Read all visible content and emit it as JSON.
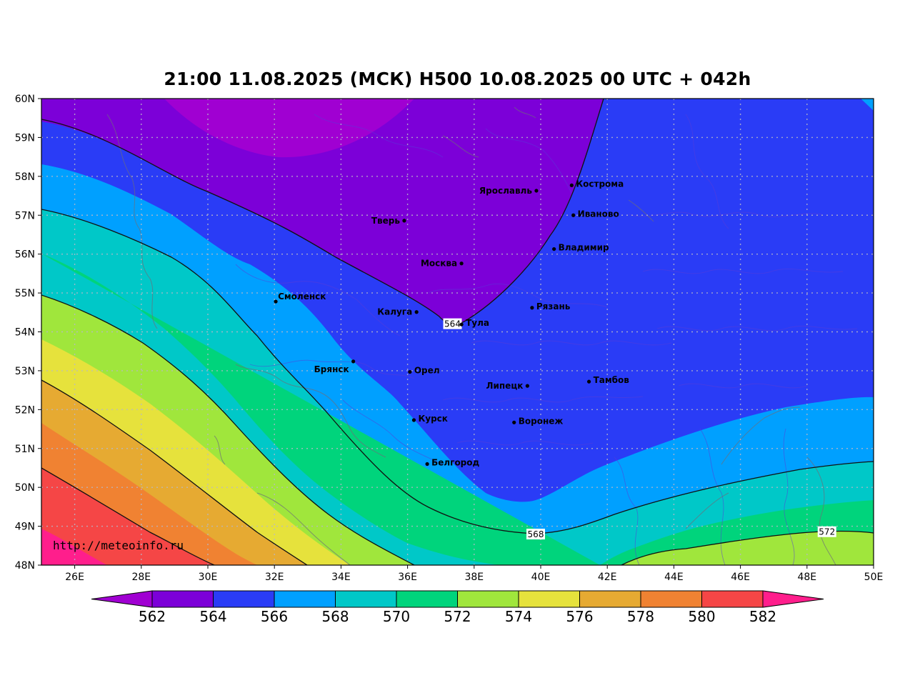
{
  "title": "21:00 11.08.2025 (МСК) H500  10.08.2025 00 UTC + 042h",
  "watermark": "http://meteoinfo.ru",
  "latitudes": [
    {
      "label": "60N",
      "value": 60
    },
    {
      "label": "59N",
      "value": 59
    },
    {
      "label": "58N",
      "value": 58
    },
    {
      "label": "57N",
      "value": 57
    },
    {
      "label": "56N",
      "value": 56
    },
    {
      "label": "55N",
      "value": 55
    },
    {
      "label": "54N",
      "value": 54
    },
    {
      "label": "53N",
      "value": 53
    },
    {
      "label": "52N",
      "value": 52
    },
    {
      "label": "51N",
      "value": 51
    },
    {
      "label": "50N",
      "value": 50
    },
    {
      "label": "49N",
      "value": 49
    },
    {
      "label": "48N",
      "value": 48
    }
  ],
  "longitudes": [
    {
      "label": "26E",
      "value": 26
    },
    {
      "label": "28E",
      "value": 28
    },
    {
      "label": "30E",
      "value": 30
    },
    {
      "label": "32E",
      "value": 32
    },
    {
      "label": "34E",
      "value": 34
    },
    {
      "label": "36E",
      "value": 36
    },
    {
      "label": "38E",
      "value": 38
    },
    {
      "label": "40E",
      "value": 40
    },
    {
      "label": "42E",
      "value": 42
    },
    {
      "label": "44E",
      "value": 44
    },
    {
      "label": "46E",
      "value": 46
    },
    {
      "label": "48E",
      "value": 48
    },
    {
      "label": "50E",
      "value": 50
    }
  ],
  "cities": [
    {
      "name": "Кострома",
      "lon": 40.93,
      "lat": 57.77,
      "anchor": "right"
    },
    {
      "name": "Ярославль",
      "lon": 39.87,
      "lat": 57.63,
      "anchor": "left"
    },
    {
      "name": "Иваново",
      "lon": 40.98,
      "lat": 57.0,
      "anchor": "right"
    },
    {
      "name": "Тверь",
      "lon": 35.9,
      "lat": 56.86,
      "anchor": "left"
    },
    {
      "name": "Владимир",
      "lon": 40.4,
      "lat": 56.13,
      "anchor": "right"
    },
    {
      "name": "Москва",
      "lon": 37.62,
      "lat": 55.76,
      "anchor": "left"
    },
    {
      "name": "Смоленск",
      "lon": 32.04,
      "lat": 54.78,
      "anchor": "right-up"
    },
    {
      "name": "Рязань",
      "lon": 39.74,
      "lat": 54.62,
      "anchor": "right"
    },
    {
      "name": "Калуга",
      "lon": 36.27,
      "lat": 54.51,
      "anchor": "left"
    },
    {
      "name": "Тула",
      "lon": 37.62,
      "lat": 54.19,
      "anchor": "right"
    },
    {
      "name": "Брянск",
      "lon": 34.37,
      "lat": 53.24,
      "anchor": "left-down"
    },
    {
      "name": "Орел",
      "lon": 36.07,
      "lat": 52.97,
      "anchor": "right"
    },
    {
      "name": "Липецк",
      "lon": 39.6,
      "lat": 52.61,
      "anchor": "left"
    },
    {
      "name": "Тамбов",
      "lon": 41.45,
      "lat": 52.72,
      "anchor": "right"
    },
    {
      "name": "Курск",
      "lon": 36.19,
      "lat": 51.73,
      "anchor": "right"
    },
    {
      "name": "Воронеж",
      "lon": 39.2,
      "lat": 51.67,
      "anchor": "right"
    },
    {
      "name": "Белгород",
      "lon": 36.59,
      "lat": 50.6,
      "anchor": "right"
    }
  ],
  "contour_labels": [
    {
      "text": "564",
      "lon": 37.35,
      "lat": 54.2
    },
    {
      "text": "568",
      "lon": 39.85,
      "lat": 48.79
    },
    {
      "text": "572",
      "lon": 48.6,
      "lat": 48.85
    }
  ],
  "colorbar": {
    "labels": [
      "562",
      "564",
      "566",
      "568",
      "570",
      "572",
      "574",
      "576",
      "578",
      "580",
      "582"
    ],
    "colors": [
      "#7c00d8",
      "#2a3cf6",
      "#00a0ff",
      "#00c8c8",
      "#00d47c",
      "#a0e63c",
      "#e6e23c",
      "#e6aa32",
      "#f08232",
      "#f54646"
    ],
    "under_color": "#a000d2",
    "over_color": "#ff1e8c"
  },
  "field_levels": [
    {
      "upper": 562,
      "color": "#a000d2"
    },
    {
      "upper": 564,
      "color": "#7c00d8"
    },
    {
      "upper": 566,
      "color": "#2a3cf6"
    },
    {
      "upper": 568,
      "color": "#00a0ff"
    },
    {
      "upper": 570,
      "color": "#00c8c8"
    },
    {
      "upper": 572,
      "color": "#00d47c"
    },
    {
      "upper": 574,
      "color": "#a0e63c"
    },
    {
      "upper": 576,
      "color": "#e6e23c"
    },
    {
      "upper": 578,
      "color": "#e6aa32"
    },
    {
      "upper": 580,
      "color": "#f08232"
    },
    {
      "upper": 582,
      "color": "#f54646"
    },
    {
      "upper": 999,
      "color": "#ff1e8c"
    }
  ]
}
